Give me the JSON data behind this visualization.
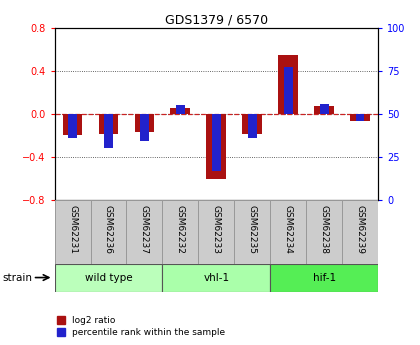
{
  "title": "GDS1379 / 6570",
  "samples": [
    "GSM62231",
    "GSM62236",
    "GSM62237",
    "GSM62232",
    "GSM62233",
    "GSM62235",
    "GSM62234",
    "GSM62238",
    "GSM62239"
  ],
  "log2_ratio": [
    -0.2,
    -0.19,
    -0.17,
    0.055,
    -0.6,
    -0.19,
    0.55,
    0.075,
    -0.07
  ],
  "percentile_rank": [
    36,
    30,
    34,
    55,
    17,
    36,
    77,
    56,
    46
  ],
  "groups": [
    {
      "label": "wild type",
      "indices": [
        0,
        1,
        2
      ],
      "color": "#bbffbb"
    },
    {
      "label": "vhl-1",
      "indices": [
        3,
        4,
        5
      ],
      "color": "#aaffaa"
    },
    {
      "label": "hif-1",
      "indices": [
        6,
        7,
        8
      ],
      "color": "#55ee55"
    }
  ],
  "ylim_left": [
    -0.8,
    0.8
  ],
  "ylim_right": [
    0,
    100
  ],
  "log2_color": "#aa1111",
  "percentile_color": "#2222cc",
  "zero_line_color": "#cc2222",
  "grid_color": "#333333",
  "plot_bg": "#ffffff",
  "sample_box_color": "#cccccc",
  "legend_log2": "log2 ratio",
  "legend_pct": "percentile rank within the sample"
}
